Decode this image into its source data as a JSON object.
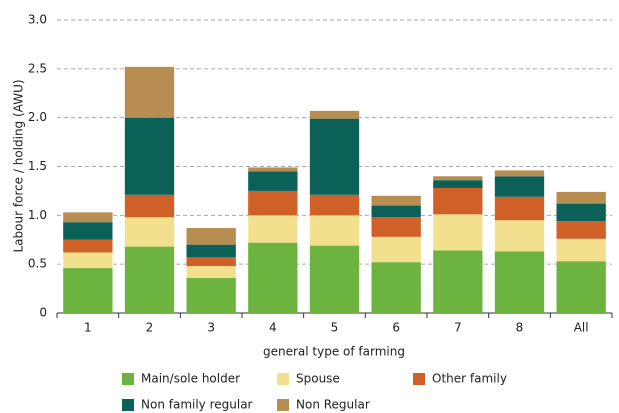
{
  "chart_data": {
    "type": "stacked_bar",
    "x_label": "general type of farming",
    "y_label": "Labour force / holding (AWU)",
    "categories": [
      "1",
      "2",
      "3",
      "4",
      "5",
      "6",
      "7",
      "8",
      "All"
    ],
    "series": [
      {
        "name": "Main/sole holder",
        "color": "#6db33f",
        "values": [
          0.46,
          0.68,
          0.36,
          0.72,
          0.69,
          0.52,
          0.64,
          0.63,
          0.53
        ]
      },
      {
        "name": "Spouse",
        "color": "#f2e08e",
        "values": [
          0.16,
          0.3,
          0.12,
          0.28,
          0.31,
          0.26,
          0.37,
          0.32,
          0.23
        ]
      },
      {
        "name": "Other family",
        "color": "#cf6027",
        "values": [
          0.13,
          0.23,
          0.09,
          0.25,
          0.21,
          0.2,
          0.27,
          0.24,
          0.18
        ]
      },
      {
        "name": "Non family regular",
        "color": "#0b6158",
        "values": [
          0.18,
          0.79,
          0.13,
          0.2,
          0.78,
          0.12,
          0.08,
          0.21,
          0.18
        ]
      },
      {
        "name": "Non Regular",
        "color": "#b88d52",
        "values": [
          0.1,
          0.52,
          0.17,
          0.04,
          0.08,
          0.1,
          0.04,
          0.06,
          0.12
        ]
      }
    ],
    "ylim": [
      0,
      3.0
    ],
    "yticks": [
      0,
      0.5,
      {
        "value": 1,
        "label": "1.0"
      },
      1.5,
      {
        "value": 2,
        "label": "2.0"
      },
      2.5,
      {
        "value": 3,
        "label": "3.0"
      }
    ],
    "grid": true
  }
}
